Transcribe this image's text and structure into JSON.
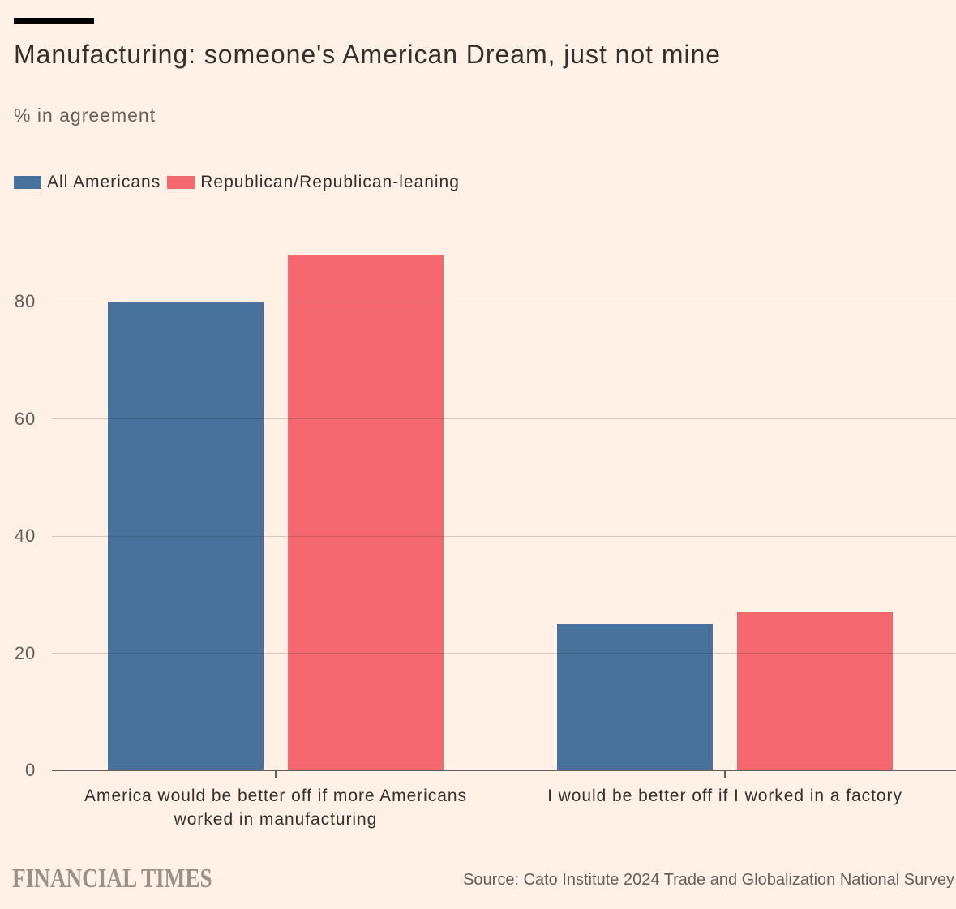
{
  "colors": {
    "background": "#FFF1E5",
    "top_rule": "#000000",
    "title_text": "#33302E",
    "subtitle_text": "#66605C",
    "legend_text": "#33302E",
    "ytick_text": "#66605C",
    "category_text": "#33302E",
    "axis_line": "#66605C",
    "gridline": "rgba(51,48,46,0.20)",
    "series_blue": "#48719C",
    "series_red": "#F5686F",
    "brand_text": "#9B9189",
    "source_text": "#66605C"
  },
  "header": {
    "title": "Manufacturing: someone's American Dream, just not mine",
    "subtitle": "% in agreement"
  },
  "legend": [
    {
      "label": "All Americans",
      "color": "#48719C"
    },
    {
      "label": "Republican/Republican-leaning",
      "color": "#F5686F"
    }
  ],
  "chart_data": {
    "type": "bar",
    "title": "Manufacturing: someone's American Dream, just not mine",
    "subtitle": "% in agreement",
    "categories": [
      "America would be better off if more Americans worked in manufacturing",
      "I would be better off if I worked in a factory"
    ],
    "category_lines": [
      [
        "America would be better off if more Americans",
        "worked in manufacturing"
      ],
      [
        "I would be better off if I worked in a factory"
      ]
    ],
    "series": [
      {
        "name": "All Americans",
        "color": "#48719C",
        "values": [
          80,
          25
        ]
      },
      {
        "name": "Republican/Republican-leaning",
        "color": "#F5686F",
        "values": [
          88,
          27
        ]
      }
    ],
    "ylabel": "",
    "xlabel": "",
    "yticks": [
      0,
      20,
      40,
      60,
      80
    ],
    "ylim": [
      0,
      88
    ],
    "grid": true,
    "legend_position": "top-left"
  },
  "footer": {
    "brand": "FINANCIAL TIMES",
    "source": "Source: Cato Institute 2024 Trade and Globalization National Survey"
  }
}
